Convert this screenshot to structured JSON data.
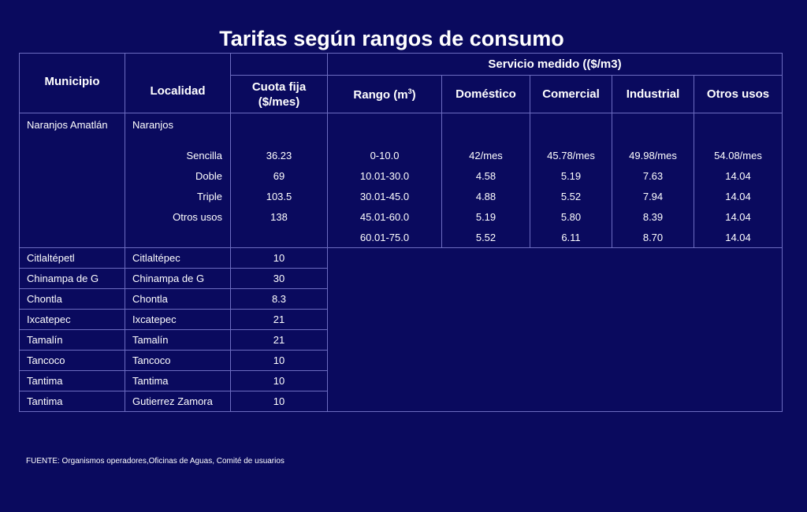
{
  "title": "Tarifas según rangos de consumo",
  "headers": {
    "municipio": "Municipio",
    "localidad": "Localidad",
    "cuota_fija": "Cuota fija ($/mes)",
    "servicio_medido": "Servicio medido (($/m3)",
    "rango": "Rango (m",
    "rango_sup": "3",
    "rango_close": ")",
    "domestico": "Doméstico",
    "comercial": "Comercial",
    "industrial": "Industrial",
    "otros_usos": "Otros usos"
  },
  "naranjos": {
    "municipio": "Naranjos Amatlán",
    "localidad": "Naranjos",
    "rows": [
      {
        "tipo": "Sencilla",
        "cuota": "36.23",
        "rango": "0-10.0",
        "domestico": "42/mes",
        "comercial": "45.78/mes",
        "industrial": "49.98/mes",
        "otros": "54.08/mes"
      },
      {
        "tipo": "Doble",
        "cuota": "69",
        "rango": "10.01-30.0",
        "domestico": "4.58",
        "comercial": "5.19",
        "industrial": "7.63",
        "otros": "14.04"
      },
      {
        "tipo": "Triple",
        "cuota": "103.5",
        "rango": "30.01-45.0",
        "domestico": "4.88",
        "comercial": "5.52",
        "industrial": "7.94",
        "otros": "14.04"
      },
      {
        "tipo": "Otros usos",
        "cuota": "138",
        "rango": "45.01-60.0",
        "domestico": "5.19",
        "comercial": "5.80",
        "industrial": "8.39",
        "otros": "14.04"
      },
      {
        "tipo": "",
        "cuota": "",
        "rango": "60.01-75.0",
        "domestico": "5.52",
        "comercial": "6.11",
        "industrial": "8.70",
        "otros": "14.04"
      }
    ]
  },
  "others": [
    {
      "municipio": "Citlaltépetl",
      "localidad": "Citlaltépec",
      "cuota": "10"
    },
    {
      "municipio": "Chinampa de G",
      "localidad": "Chinampa de G",
      "cuota": "30"
    },
    {
      "municipio": "Chontla",
      "localidad": "Chontla",
      "cuota": "8.3"
    },
    {
      "municipio": "Ixcatepec",
      "localidad": "Ixcatepec",
      "cuota": "21"
    },
    {
      "municipio": "Tamalín",
      "localidad": "Tamalín",
      "cuota": "21"
    },
    {
      "municipio": "Tancoco",
      "localidad": "Tancoco",
      "cuota": "10"
    },
    {
      "municipio": "Tantima",
      "localidad": "Tantima",
      "cuota": "10"
    },
    {
      "municipio": "Tantima",
      "localidad": "Gutierrez Zamora",
      "cuota": "10"
    }
  ],
  "source": "FUENTE: Organismos operadores,Oficinas de Aguas, Comité de usuarios"
}
